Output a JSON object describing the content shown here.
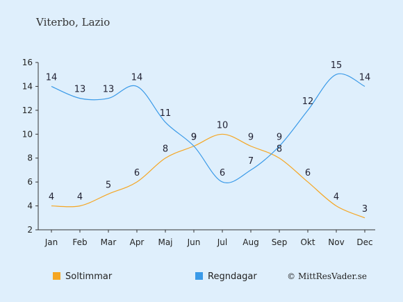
{
  "header": {
    "location": "Viterbo, Lazio"
  },
  "credit": "© MittResVader.se",
  "chart_data": {
    "type": "line",
    "title": "Viterbo, Lazio",
    "categories": [
      "Jan",
      "Feb",
      "Mar",
      "Apr",
      "Maj",
      "Jun",
      "Jul",
      "Aug",
      "Sep",
      "Okt",
      "Nov",
      "Dec"
    ],
    "ylim": [
      2,
      16
    ],
    "yticks": [
      2,
      4,
      6,
      8,
      10,
      12,
      14,
      16
    ],
    "grid": false,
    "legend": "bottom-left",
    "series": [
      {
        "name": "Soltimmar",
        "color": "#f5a623",
        "values": [
          4,
          4,
          5,
          6,
          8,
          9,
          10,
          9,
          8,
          6,
          4,
          3
        ]
      },
      {
        "name": "Regndagar",
        "color": "#3a9ae8",
        "values": [
          14,
          13,
          13,
          14,
          11,
          9,
          6,
          7,
          9,
          12,
          15,
          14
        ]
      }
    ]
  }
}
